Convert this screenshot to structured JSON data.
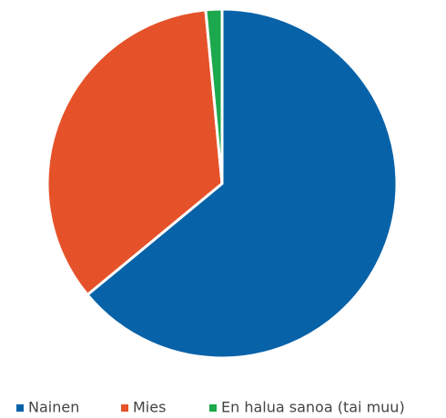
{
  "chart_data": {
    "type": "pie",
    "categories": [
      "Nainen",
      "Mies",
      "En halua sanoa (tai muu)"
    ],
    "values": [
      64,
      34.5,
      1.5
    ],
    "colors": [
      "#0862a8",
      "#e5522a",
      "#1ca84c"
    ],
    "legend": "bottom"
  }
}
